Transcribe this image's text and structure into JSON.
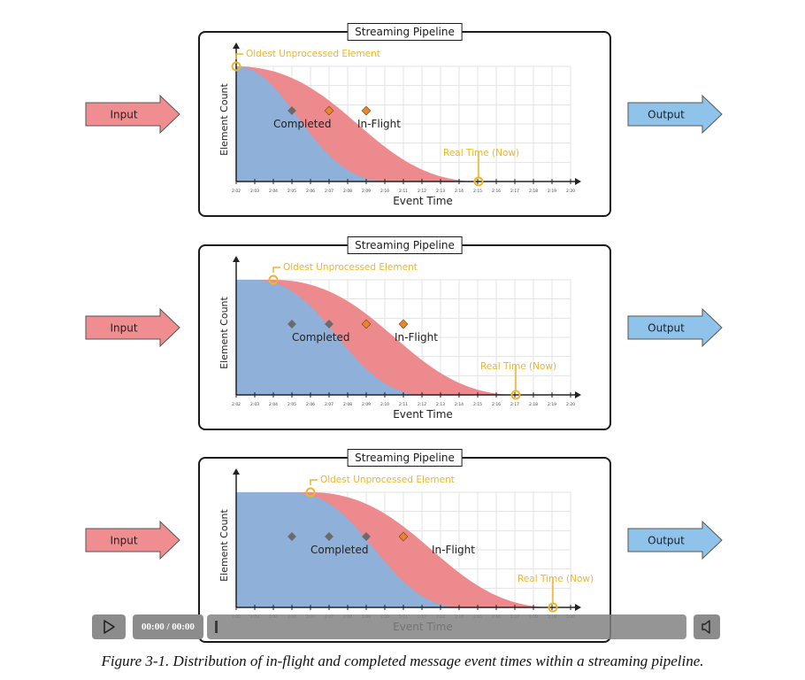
{
  "panel_title": "Streaming Pipeline",
  "input_label": "Input",
  "output_label": "Output",
  "ylabel": "Element Count",
  "xlabel": "Event Time",
  "oldest_label": "Oldest Unprocessed Element",
  "realtime_label": "Real Time (Now)",
  "completed_label": "Completed",
  "inflight_label": "In-Flight",
  "colors": {
    "completed": "#8fb0d8",
    "inflight": "#ec8a8e",
    "accent": "#f0b429",
    "completed_marker": "#6b6b6b",
    "inflight_marker": "#e8862a",
    "input_arrow": "#ef8d90",
    "output_arrow": "#8fc3ea"
  },
  "tick_labels": [
    "2:02",
    "2:03",
    "2:04",
    "2:05",
    "2:06",
    "2:07",
    "2:08",
    "2:09",
    "2:10",
    "2:11",
    "2:12",
    "2:13",
    "2:14",
    "2:15",
    "2:16",
    "2:17",
    "2:18",
    "2:19",
    "2:20"
  ],
  "player": {
    "time": "00:00 / 00:00",
    "play_icon": "play-icon",
    "volume_icon": "volume-icon"
  },
  "caption": "Figure 3-1. Distribution of in-flight and completed message event times within a streaming pipeline."
}
